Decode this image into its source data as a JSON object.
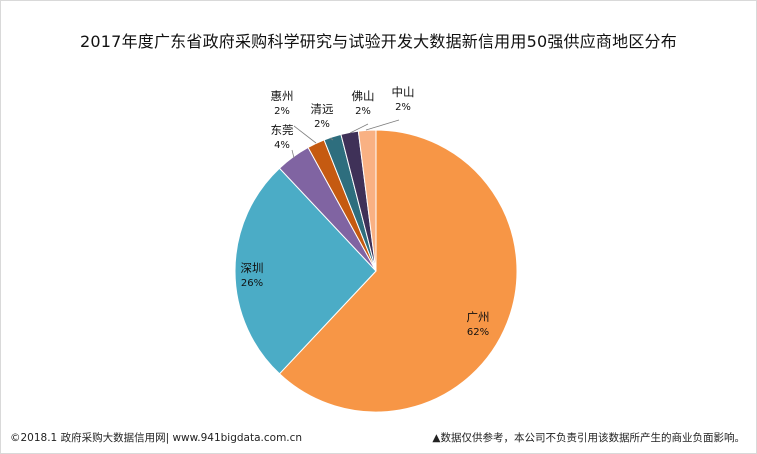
{
  "title": "2017年度广东省政府采购科学研究与试验开发大数据新信用用50强供应商地区分布",
  "footer": {
    "left": "©2018.1 政府采购大数据信用网| www.941bigdata.com.cn",
    "right": "▲数据仅供参考，本公司不负责引用该数据所产生的商业负面影响。"
  },
  "chart_data": {
    "type": "pie",
    "title": "2017年度广东省政府采购科学研究与试验开发大数据新信用用50强供应商地区分布",
    "slices": [
      {
        "name": "广州",
        "value": 62,
        "label": "62%",
        "color": "#F79646"
      },
      {
        "name": "深圳",
        "value": 26,
        "label": "26%",
        "color": "#4BACC6"
      },
      {
        "name": "东莞",
        "value": 4,
        "label": "4%",
        "color": "#8064A2"
      },
      {
        "name": "惠州",
        "value": 2,
        "label": "2%",
        "color": "#C0504D"
      },
      {
        "name": "清远",
        "value": 2,
        "label": "2%",
        "color": "#31859C"
      },
      {
        "name": "佛山",
        "value": 2,
        "label": "2%",
        "color": "#403151"
      },
      {
        "name": "中山",
        "value": 2,
        "label": "2%",
        "color": "#FAC090"
      }
    ],
    "slice_colors_actual": [
      "#F79646",
      "#4BACC6",
      "#8064A2",
      "#C55A11",
      "#2E6E7E",
      "#3F3158",
      "#F9B183"
    ],
    "start": "top",
    "direction": "clockwise",
    "labels_inside": [
      "广州",
      "深圳"
    ],
    "labels_outside_with_leaders": [
      "东莞",
      "惠州",
      "清远",
      "佛山",
      "中山"
    ]
  }
}
